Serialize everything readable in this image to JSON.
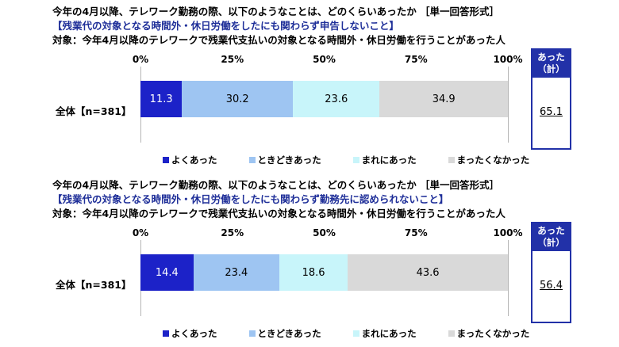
{
  "colors": {
    "よくあった": "#1c22c8",
    "ときどきあった": "#9ec5f2",
    "まれにあった": "#c8f5fa",
    "まったくなかった": "#d9d9d9",
    "accent": "#2231a8"
  },
  "panels": [
    {
      "title": "今年の4月以降、テレワーク勤務の際、以下のようなことは、どのくらいあったか ［単一回答形式］",
      "subtitle": "【残業代の対象となる時間外・休日労働をしたにも関わらず申告しないこと】",
      "target": "対象：今年4月以降のテレワークで残業代支払いの対象となる時間外・休日労働を行うことがあった人",
      "total_header": "あった（計）",
      "total_value": "65.1"
    },
    {
      "title": "今年の4月以降、テレワーク勤務の際、以下のようなことは、どのくらいあったか ［単一回答形式］",
      "subtitle": "【残業代の対象となる時間外・休日労働をしたにも関わらず勤務先に認められないこと】",
      "target": "対象：今年4月以降のテレワークで残業代支払いの対象となる時間外・休日労働を行うことがあった人",
      "total_header": "あった（計）",
      "total_value": "56.4"
    }
  ],
  "chart_data": [
    {
      "type": "bar",
      "orientation": "horizontal-stacked-100",
      "categories": [
        "全体【n=381】"
      ],
      "x_ticks": [
        "0%",
        "25%",
        "50%",
        "75%",
        "100%"
      ],
      "xlim": [
        0,
        100
      ],
      "legend_position": "bottom",
      "series": [
        {
          "name": "よくあった",
          "values": [
            11.3
          ]
        },
        {
          "name": "ときどきあった",
          "values": [
            30.2
          ]
        },
        {
          "name": "まれにあった",
          "values": [
            23.6
          ]
        },
        {
          "name": "まったくなかった",
          "values": [
            34.9
          ]
        }
      ]
    },
    {
      "type": "bar",
      "orientation": "horizontal-stacked-100",
      "categories": [
        "全体【n=381】"
      ],
      "x_ticks": [
        "0%",
        "25%",
        "50%",
        "75%",
        "100%"
      ],
      "xlim": [
        0,
        100
      ],
      "legend_position": "bottom",
      "series": [
        {
          "name": "よくあった",
          "values": [
            14.4
          ]
        },
        {
          "name": "ときどきあった",
          "values": [
            23.4
          ]
        },
        {
          "name": "まれにあった",
          "values": [
            18.6
          ]
        },
        {
          "name": "まったくなかった",
          "values": [
            43.6
          ]
        }
      ]
    }
  ]
}
